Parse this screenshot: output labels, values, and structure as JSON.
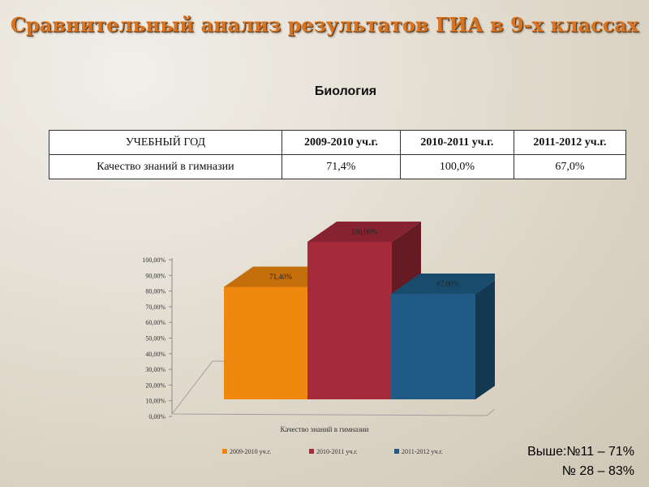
{
  "title": "Сравнительный анализ результатов ГИА в 9-х классах",
  "subject": "Биология",
  "table": {
    "header": [
      "УЧЕБНЫЙ ГОД",
      "2009-2010 уч.г.",
      "2010-2011 уч.г.",
      "2011-2012 уч.г."
    ],
    "row": [
      "Качество знаний в гимназии",
      "71,4%",
      "100,0%",
      "67,0%"
    ]
  },
  "chart_data": {
    "type": "bar",
    "categories": [
      "Качество знаний в гимназии"
    ],
    "series": [
      {
        "name": "2009-2010 уч.г.",
        "values": [
          71.4
        ],
        "label": "71,40%",
        "color": "#f0870f"
      },
      {
        "name": "2010-2011 уч.г.",
        "values": [
          100.0
        ],
        "label": "100,00%",
        "color": "#a52b3a"
      },
      {
        "name": "2011-2012 уч.г.",
        "values": [
          67.0
        ],
        "label": "67,00%",
        "color": "#1f5b85"
      }
    ],
    "yticks": [
      "0,00%",
      "10,00%",
      "20,00%",
      "30,00%",
      "40,00%",
      "50,00%",
      "60,00%",
      "70,00%",
      "80,00%",
      "90,00%",
      "100,00%"
    ],
    "ylim": [
      0,
      100
    ],
    "xlabel": "Качество знаний в гимназии",
    "legend_position": "bottom",
    "three_d": true
  },
  "notes": [
    "Выше:№11 – 71%",
    "№ 28 – 83%"
  ]
}
